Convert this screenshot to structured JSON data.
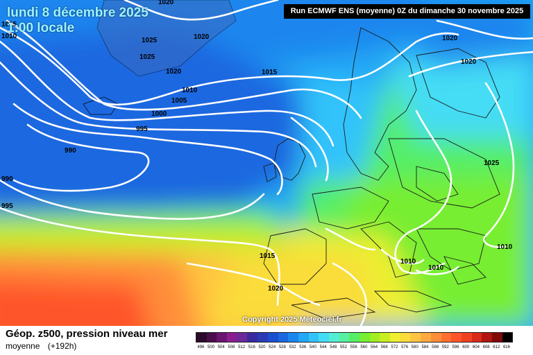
{
  "header": {
    "date_line": "lundi 8 décembre 2025",
    "time_line": "1:00 locale",
    "run_info": "Run ECMWF ENS (moyenne) 0Z du dimanche 30 novembre 2025"
  },
  "copyright": "Copyright 2025 Meteociel.fr",
  "legend": {
    "title": "Géop. z500, pression niveau mer",
    "subtitle_left": "moyenne",
    "subtitle_right": "(+192h)",
    "scale_values": [
      "496",
      "500",
      "504",
      "508",
      "512",
      "516",
      "520",
      "524",
      "528",
      "532",
      "536",
      "540",
      "544",
      "548",
      "552",
      "556",
      "560",
      "564",
      "568",
      "572",
      "576",
      "580",
      "584",
      "588",
      "592",
      "596",
      "600",
      "604",
      "608",
      "612",
      "616"
    ],
    "scale_colors": [
      "#2b0a2b",
      "#4a0f4a",
      "#6b1470",
      "#8a1e90",
      "#6a2a9a",
      "#3a2aa0",
      "#2a3ab5",
      "#1a4fd0",
      "#1a68e0",
      "#1a86ee",
      "#22a6f5",
      "#33c3fa",
      "#44dcf5",
      "#55eed5",
      "#55f0a0",
      "#55ee66",
      "#77ee33",
      "#a0ee22",
      "#c8ee22",
      "#eeee33",
      "#fadc3a",
      "#ffc440",
      "#ffaa40",
      "#ff8e3a",
      "#ff7030",
      "#ff552a",
      "#f04020",
      "#d82a1a",
      "#b01510",
      "#800a08",
      "#000000"
    ]
  },
  "isobars": [
    {
      "value": "1020",
      "pos": "top-center"
    },
    {
      "value": "1015",
      "pos": "left-edge"
    },
    {
      "value": "1010",
      "pos": "left-edge"
    },
    {
      "value": "1025",
      "pos": "greenland"
    },
    {
      "value": "1020",
      "pos": "greenland"
    },
    {
      "value": "1025",
      "pos": "greenland"
    },
    {
      "value": "1020",
      "pos": "greenland"
    },
    {
      "value": "1015",
      "pos": "north-atlantic"
    },
    {
      "value": "1010",
      "pos": "north-atlantic"
    },
    {
      "value": "1005",
      "pos": "north-atlantic"
    },
    {
      "value": "1000",
      "pos": "north-atlantic"
    },
    {
      "value": "995",
      "pos": "north-atlantic"
    },
    {
      "value": "990",
      "pos": "north-atlantic"
    },
    {
      "value": "990",
      "pos": "left-edge"
    },
    {
      "value": "995",
      "pos": "left-edge"
    },
    {
      "value": "1020",
      "pos": "scandinavia"
    },
    {
      "value": "1020",
      "pos": "scandinavia"
    },
    {
      "value": "1025",
      "pos": "eastern-europe"
    },
    {
      "value": "1010",
      "pos": "black-sea"
    },
    {
      "value": "1010",
      "pos": "ionian"
    },
    {
      "value": "1010",
      "pos": "aegean"
    },
    {
      "value": "1015",
      "pos": "iberia"
    },
    {
      "value": "1020",
      "pos": "atlantic-south"
    }
  ]
}
